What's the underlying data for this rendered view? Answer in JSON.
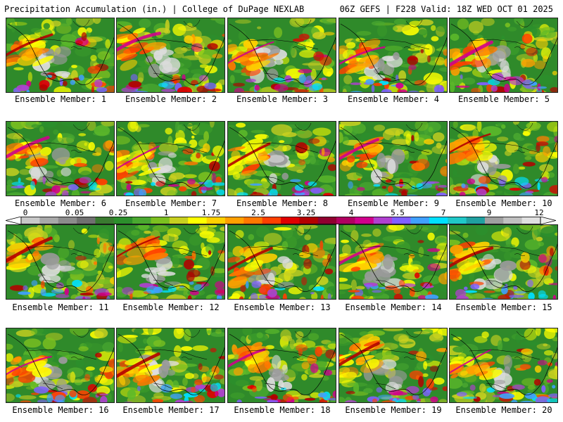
{
  "header": {
    "title": "Precipitation Accumulation (in.) | College of DuPage NEXLAB",
    "run_info": "06Z GEFS | F228 Valid: 18Z WED OCT 01 2025"
  },
  "colorbar": {
    "tick_labels": [
      "0",
      "0.05",
      "0.25",
      "1",
      "1.75",
      "2.5",
      "3.25",
      "4",
      "5.5",
      "7",
      "9",
      "12"
    ],
    "colors": [
      "#c8c8c8",
      "#a8a8a8",
      "#8c8c8c",
      "#707070",
      "#3a7a30",
      "#2c8f2c",
      "#4aa830",
      "#7cc020",
      "#c8d020",
      "#ffff00",
      "#ffd000",
      "#ffa000",
      "#ff7800",
      "#ff4000",
      "#e00000",
      "#b40000",
      "#900030",
      "#b00060",
      "#d0008c",
      "#b040d0",
      "#8060ff",
      "#40a0ff",
      "#00e0ff",
      "#20c8c8",
      "#20a0a0",
      "#a0a0a0",
      "#c0c0c0",
      "#e0e0e0"
    ]
  },
  "members": [
    {
      "label": "Ensemble Member: 1"
    },
    {
      "label": "Ensemble Member: 2"
    },
    {
      "label": "Ensemble Member: 3"
    },
    {
      "label": "Ensemble Member: 4"
    },
    {
      "label": "Ensemble Member: 5"
    },
    {
      "label": "Ensemble Member: 6"
    },
    {
      "label": "Ensemble Member: 7"
    },
    {
      "label": "Ensemble Member: 8"
    },
    {
      "label": "Ensemble Member: 9"
    },
    {
      "label": "Ensemble Member: 10"
    },
    {
      "label": "Ensemble Member: 11"
    },
    {
      "label": "Ensemble Member: 12"
    },
    {
      "label": "Ensemble Member: 13"
    },
    {
      "label": "Ensemble Member: 14"
    },
    {
      "label": "Ensemble Member: 15"
    },
    {
      "label": "Ensemble Member: 16"
    },
    {
      "label": "Ensemble Member: 17"
    },
    {
      "label": "Ensemble Member: 18"
    },
    {
      "label": "Ensemble Member: 19"
    },
    {
      "label": "Ensemble Member: 20"
    }
  ]
}
